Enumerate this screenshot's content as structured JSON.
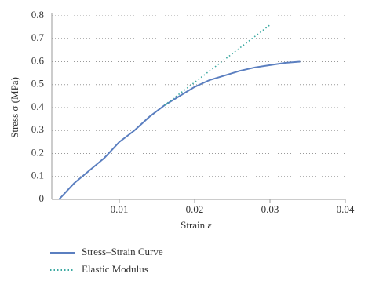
{
  "chart_data": {
    "type": "line",
    "xlabel": "Strain ε",
    "ylabel": "Stress σ (MPa)",
    "xlim": [
      0,
      0.04
    ],
    "xticks": [
      0.01,
      0.02,
      0.03,
      0.04
    ],
    "ylim": [
      0,
      0.8
    ],
    "yticks": [
      0,
      0.1,
      0.2,
      0.3,
      0.4,
      0.5,
      0.6,
      0.7,
      0.8
    ],
    "grid": true,
    "legend": "bottom",
    "series": [
      {
        "name": "Stress–Strain Curve",
        "color": "#5b7fc0",
        "dash": false,
        "x": [
          0.002,
          0.004,
          0.008,
          0.01,
          0.012,
          0.014,
          0.016,
          0.018,
          0.02,
          0.022,
          0.024,
          0.026,
          0.028,
          0.03,
          0.032,
          0.034
        ],
        "values": [
          0,
          0.07,
          0.18,
          0.25,
          0.3,
          0.36,
          0.41,
          0.45,
          0.49,
          0.52,
          0.54,
          0.56,
          0.575,
          0.585,
          0.595,
          0.6
        ]
      },
      {
        "name": "Elastic Modulus",
        "color": "#3aa8a0",
        "dash": true,
        "x": [
          0.016,
          0.03
        ],
        "values": [
          0.41,
          0.76
        ]
      }
    ]
  }
}
